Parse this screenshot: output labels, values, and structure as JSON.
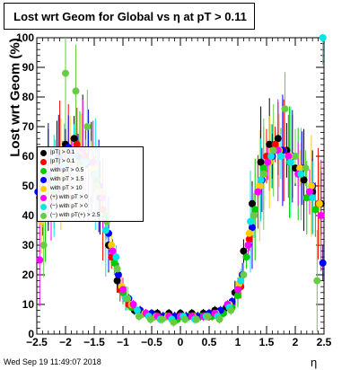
{
  "chart_data": {
    "type": "scatter",
    "title": "Lost wrt Geom for Global vs    η at pT > 0.11",
    "xlabel": "η",
    "ylabel": "Lost wrt Geom (%)",
    "xlim": [
      -2.5,
      2.5
    ],
    "ylim": [
      0,
      100
    ],
    "x_ticks": [
      "−2.5",
      "−2",
      "−1.5",
      "−1",
      "−0.5",
      "0",
      "0.5",
      "1",
      "1.5",
      "2",
      "2.5"
    ],
    "y_ticks": [
      "0",
      "10",
      "20",
      "30",
      "40",
      "50",
      "60",
      "70",
      "80",
      "90",
      "100"
    ],
    "grid": false,
    "legend_position": "upper-left",
    "legend": [
      {
        "name": "|pT| > 0.1",
        "color": "#000000"
      },
      {
        "name": "|pT| > 0.1",
        "color": "#ff0000"
      },
      {
        "name": "with pT > 0.5",
        "color": "#00cc00"
      },
      {
        "name": "with pT > 1.5",
        "color": "#0000ff"
      },
      {
        "name": "with pT > 10",
        "color": "#ffcc00"
      },
      {
        "name": "(+) with pT > 0",
        "color": "#ff00ff"
      },
      {
        "name": "(−) with pT > 0",
        "color": "#00e5e5"
      },
      {
        "name": "(−) with pT(+) > 2.5",
        "color": "#66cc44"
      }
    ],
    "series": [
      {
        "color": "#000000",
        "x": [
          -2.45,
          -2.3,
          -2.15,
          -2.0,
          -1.85,
          -1.7,
          -1.55,
          -1.4,
          -1.25,
          -1.1,
          -0.95,
          -0.8,
          -0.6,
          -0.4,
          -0.2,
          0.0,
          0.2,
          0.4,
          0.6,
          0.8,
          0.95,
          1.1,
          1.25,
          1.4,
          1.55,
          1.7,
          1.85,
          2.0,
          2.15,
          2.3,
          2.45
        ],
        "y": [
          46,
          52,
          58,
          64,
          66,
          62,
          56,
          46,
          30,
          18,
          12,
          8,
          7,
          7,
          7,
          7,
          7,
          7,
          8,
          9,
          14,
          28,
          44,
          58,
          64,
          66,
          62,
          56,
          52,
          48,
          44
        ]
      },
      {
        "color": "#ff0000",
        "x": [
          -2.4,
          -2.25,
          -2.1,
          -1.95,
          -1.8,
          -1.65,
          -1.5,
          -1.35,
          -1.2,
          -1.05,
          -0.9,
          -0.7,
          -0.5,
          -0.3,
          -0.1,
          0.1,
          0.3,
          0.5,
          0.7,
          0.9,
          1.05,
          1.2,
          1.35,
          1.5,
          1.65,
          1.8,
          1.95,
          2.1,
          2.25,
          2.4
        ],
        "y": [
          44,
          50,
          60,
          62,
          64,
          60,
          54,
          42,
          26,
          15,
          10,
          8,
          6,
          6,
          6,
          6,
          6,
          6,
          7,
          10,
          16,
          32,
          48,
          60,
          64,
          62,
          60,
          54,
          48,
          44
        ]
      },
      {
        "color": "#00cc00",
        "x": [
          -2.35,
          -2.2,
          -2.05,
          -1.9,
          -1.75,
          -1.6,
          -1.45,
          -1.3,
          -1.15,
          -1.0,
          -0.85,
          -0.65,
          -0.45,
          -0.25,
          -0.05,
          0.15,
          0.35,
          0.55,
          0.75,
          0.9,
          1.0,
          1.15,
          1.3,
          1.45,
          1.6,
          1.75,
          1.9,
          2.05,
          2.2,
          2.35
        ],
        "y": [
          40,
          48,
          56,
          60,
          58,
          58,
          52,
          40,
          24,
          14,
          9,
          7,
          6,
          6,
          5,
          6,
          6,
          6,
          7,
          9,
          13,
          26,
          42,
          56,
          60,
          62,
          58,
          54,
          46,
          42
        ]
      },
      {
        "color": "#0000ff",
        "x": [
          -2.48,
          -2.3,
          -2.12,
          -1.95,
          -1.78,
          -1.6,
          -1.42,
          -1.25,
          -1.08,
          -0.9,
          -0.7,
          -0.5,
          -0.3,
          -0.1,
          0.1,
          0.3,
          0.5,
          0.7,
          0.9,
          1.08,
          1.25,
          1.42,
          1.6,
          1.78,
          1.95,
          2.12,
          2.3,
          2.48
        ],
        "y": [
          48,
          54,
          60,
          63,
          60,
          57,
          50,
          34,
          20,
          12,
          8,
          7,
          6,
          6,
          6,
          6,
          7,
          8,
          11,
          20,
          36,
          52,
          60,
          62,
          60,
          56,
          50,
          24
        ]
      },
      {
        "color": "#ffcc00",
        "x": [
          -2.42,
          -2.28,
          -2.08,
          -1.92,
          -1.72,
          -1.55,
          -1.38,
          -1.2,
          -1.02,
          -0.85,
          -0.62,
          -0.42,
          -0.22,
          0.0,
          0.22,
          0.42,
          0.62,
          0.85,
          1.02,
          1.2,
          1.38,
          1.55,
          1.72,
          1.92,
          2.08,
          2.28,
          2.42
        ],
        "y": [
          38,
          46,
          54,
          58,
          62,
          56,
          48,
          30,
          16,
          10,
          7,
          6,
          6,
          6,
          6,
          6,
          7,
          10,
          17,
          34,
          50,
          58,
          62,
          60,
          56,
          50,
          44
        ]
      },
      {
        "color": "#ff00ff",
        "x": [
          -2.45,
          -2.25,
          -2.05,
          -1.88,
          -1.7,
          -1.52,
          -1.35,
          -1.18,
          -1.0,
          -0.82,
          -0.6,
          -0.4,
          -0.2,
          0.0,
          0.2,
          0.4,
          0.6,
          0.82,
          1.0,
          1.18,
          1.35,
          1.52,
          1.7,
          1.88,
          2.05,
          2.25,
          2.45
        ],
        "y": [
          25,
          44,
          56,
          60,
          62,
          58,
          46,
          28,
          15,
          10,
          7,
          6,
          6,
          6,
          6,
          6,
          7,
          10,
          15,
          30,
          48,
          58,
          62,
          60,
          54,
          48,
          40
        ]
      },
      {
        "color": "#00e5e5",
        "x": [
          -2.4,
          -2.2,
          -2.02,
          -1.85,
          -1.65,
          -1.48,
          -1.3,
          -1.12,
          -0.95,
          -0.75,
          -0.55,
          -0.35,
          -0.15,
          0.05,
          0.25,
          0.45,
          0.65,
          0.85,
          1.05,
          1.22,
          1.4,
          1.58,
          1.75,
          1.92,
          2.1,
          2.3,
          2.48
        ],
        "y": [
          42,
          50,
          57,
          60,
          58,
          54,
          35,
          26,
          12,
          8,
          6,
          5,
          5,
          6,
          5,
          6,
          6,
          9,
          18,
          38,
          52,
          60,
          60,
          58,
          54,
          46,
          100
        ]
      },
      {
        "color": "#66cc44",
        "x": [
          -2.38,
          -2.18,
          -2.0,
          -1.82,
          -1.62,
          -1.45,
          -1.28,
          -1.1,
          -0.92,
          -0.72,
          -0.52,
          -0.32,
          -0.12,
          0.08,
          0.28,
          0.48,
          0.68,
          0.88,
          1.1,
          1.28,
          1.45,
          1.62,
          1.82,
          2.0,
          2.18,
          2.38
        ],
        "y": [
          30,
          58,
          88,
          82,
          70,
          50,
          38,
          22,
          12,
          6,
          5,
          5,
          4,
          5,
          5,
          6,
          5,
          8,
          20,
          40,
          54,
          62,
          76,
          60,
          56,
          18
        ]
      }
    ]
  },
  "footer": {
    "timestamp": "Wed Sep 19 11:49:07 2018"
  }
}
